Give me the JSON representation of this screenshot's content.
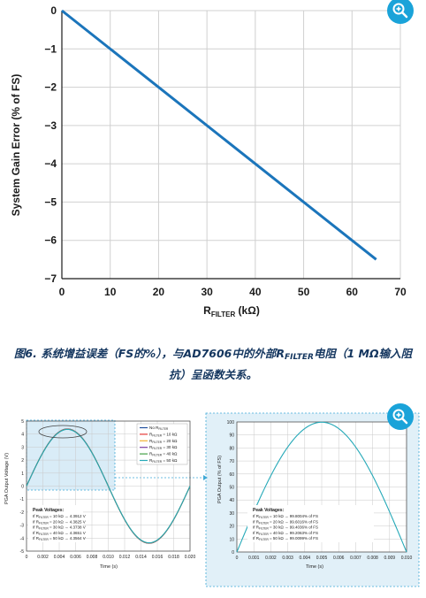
{
  "chart_data": [
    {
      "type": "line",
      "title": "",
      "xlabel_main": "R",
      "xlabel_sub": "FILTER",
      "xlabel_unit": " (kΩ)",
      "ylabel": "System Gain Error (% of FS)",
      "xlim": [
        0,
        70
      ],
      "ylim": [
        -7,
        0
      ],
      "xticks": [
        0,
        10,
        20,
        30,
        40,
        50,
        60,
        70
      ],
      "yticks": [
        0,
        -1,
        -2,
        -3,
        -4,
        -5,
        -6,
        -7
      ],
      "grid": true,
      "series": [
        {
          "color": "#1b75bb",
          "x": [
            0,
            65
          ],
          "y": [
            0,
            -6.5
          ]
        }
      ]
    },
    {
      "type": "line",
      "xlabel": "Time (s)",
      "ylabel": "PGA Output Voltage (V)",
      "xlim": [
        0,
        0.02
      ],
      "ylim": [
        -5,
        5
      ],
      "xticks": [
        "0",
        "0.002",
        "0.004",
        "0.006",
        "0.008",
        "0.010",
        "0.012",
        "0.014",
        "0.016",
        "0.018",
        "0.020"
      ],
      "yticks": [
        5,
        4,
        3,
        2,
        1,
        0,
        -1,
        -2,
        -3,
        -4,
        -5
      ],
      "grid": true,
      "legend_position": "top-right",
      "series": [
        {
          "name": "No R",
          "name_sub": "FILTER",
          "color": "#1f4e9c",
          "amplitude": 4.4
        },
        {
          "name": "R",
          "name_sub": "FILTER",
          "name_tail": " = 10 kΩ",
          "color": "#e53935",
          "amplitude": 4.3912
        },
        {
          "name": "R",
          "name_sub": "FILTER",
          "name_tail": " = 20 kΩ",
          "color": "#f2b233",
          "amplitude": 4.3825
        },
        {
          "name": "R",
          "name_sub": "FILTER",
          "name_tail": " = 30 kΩ",
          "color": "#7b3fa0",
          "amplitude": 4.3738
        },
        {
          "name": "R",
          "name_sub": "FILTER",
          "name_tail": " = 40 kΩ",
          "color": "#43a047",
          "amplitude": 4.3651
        },
        {
          "name": "R",
          "name_sub": "FILTER",
          "name_tail": " = 50 kΩ",
          "color": "#26a9b8",
          "amplitude": 4.3564
        }
      ],
      "annotation_title": "Peak Voltages:",
      "annotations": [
        {
          "a": "If R",
          "sub": "FILTER",
          "b": " = 10 kΩ ",
          "arrow": "→",
          "c": " 4.3912 V"
        },
        {
          "a": "If R",
          "sub": "FILTER",
          "b": " = 20 kΩ ",
          "arrow": "→",
          "c": " 4.3825 V"
        },
        {
          "a": "If R",
          "sub": "FILTER",
          "b": " = 30 kΩ ",
          "arrow": "→",
          "c": " 4.3738 V"
        },
        {
          "a": "If R",
          "sub": "FILTER",
          "b": " = 40 kΩ ",
          "arrow": "→",
          "c": " 4.3651 V"
        },
        {
          "a": "If R",
          "sub": "FILTER",
          "b": " = 50 kΩ ",
          "arrow": "→",
          "c": " 4.3564 V"
        }
      ]
    },
    {
      "type": "line",
      "xlabel": "Time (s)",
      "ylabel": "PGA Output (% of FS)",
      "xlim": [
        0,
        0.01
      ],
      "ylim": [
        0,
        100
      ],
      "xticks": [
        "0",
        "0.001",
        "0.002",
        "0.003",
        "0.004",
        "0.005",
        "0.006",
        "0.007",
        "0.008",
        "0.009",
        "0.010"
      ],
      "yticks": [
        100,
        90,
        80,
        70,
        60,
        50,
        40,
        30,
        20,
        10,
        0
      ],
      "grid": true,
      "series": [
        {
          "color": "#26a9b8",
          "peak": 99.8
        }
      ],
      "annotation_title": "Peak Voltages:",
      "annotations": [
        {
          "a": "If R",
          "sub": "FILTER",
          "b": " = 10 kΩ ",
          "arrow": "→",
          "c": " 99.8004% of FS"
        },
        {
          "a": "If R",
          "sub": "FILTER",
          "b": " = 20 kΩ ",
          "arrow": "→",
          "c": " 99.6016% of FS"
        },
        {
          "a": "If R",
          "sub": "FILTER",
          "b": " = 30 kΩ ",
          "arrow": "→",
          "c": " 99.4036% of FS"
        },
        {
          "a": "If R",
          "sub": "FILTER",
          "b": " = 40 kΩ ",
          "arrow": "→",
          "c": " 99.2063% of FS"
        },
        {
          "a": "If R",
          "sub": "FILTER",
          "b": " = 50 kΩ ",
          "arrow": "→",
          "c": " 99.0099% of FS"
        }
      ]
    }
  ],
  "caption": {
    "line1_a": "图6. 系统增益误差（FS的%），与AD7606中的外部R",
    "line1_sub": "FILTER",
    "line1_b": "电阻（1 MΩ输入阻",
    "line2": "抗）呈函数关系。"
  },
  "icons": {
    "zoom": "zoom-in-icon",
    "color": "#1aa3d9"
  }
}
